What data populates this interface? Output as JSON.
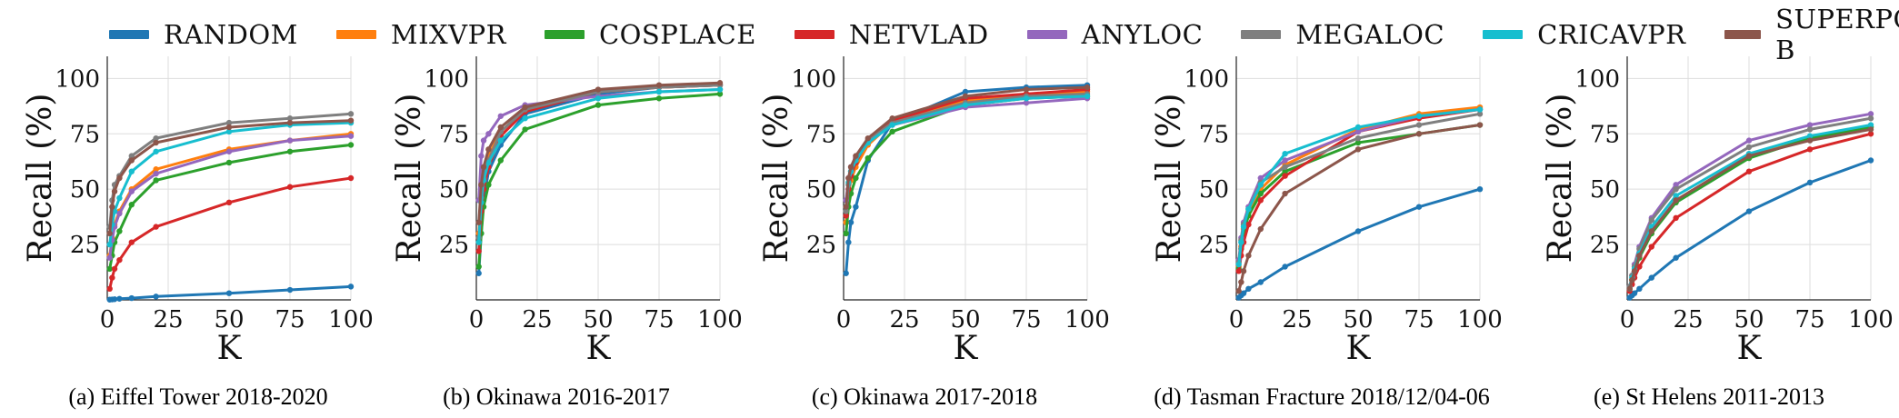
{
  "legend": {
    "items": [
      {
        "label": "RANDOM",
        "color": "#1f77b4"
      },
      {
        "label": "MIXVPR",
        "color": "#ff7f0e"
      },
      {
        "label": "COSPLACE",
        "color": "#2ca02c"
      },
      {
        "label": "NETVLAD",
        "color": "#d62728"
      },
      {
        "label": "ANYLOC",
        "color": "#9467bd"
      },
      {
        "label": "MEGALOC",
        "color": "#7f7f7f"
      },
      {
        "label": "CRICAVPR",
        "color": "#17becf"
      },
      {
        "label": "SUPERPOINT-B",
        "color": "#8c564b"
      }
    ]
  },
  "chart_data": [
    {
      "type": "line",
      "caption": "(a) Eiffel Tower 2018-2020",
      "xlabel": "K",
      "ylabel": "Recall (%)",
      "xlim": [
        0,
        100
      ],
      "ylim": [
        0,
        110
      ],
      "xticks": [
        0,
        25,
        50,
        75,
        100
      ],
      "yticks": [
        25,
        50,
        75,
        100
      ],
      "grid": true,
      "x": [
        1,
        2,
        3,
        5,
        10,
        20,
        50,
        75,
        100
      ],
      "series": [
        {
          "name": "RANDOM",
          "values": [
            0.1,
            0.2,
            0.3,
            0.5,
            0.8,
            1.5,
            3,
            4.5,
            6
          ]
        },
        {
          "name": "MIXVPR",
          "values": [
            20,
            28,
            34,
            40,
            50,
            59,
            68,
            72,
            75
          ]
        },
        {
          "name": "COSPLACE",
          "values": [
            14,
            20,
            26,
            31,
            43,
            54,
            62,
            67,
            70
          ]
        },
        {
          "name": "NETVLAD",
          "values": [
            5,
            10,
            14,
            18,
            26,
            33,
            44,
            51,
            55
          ]
        },
        {
          "name": "ANYLOC",
          "values": [
            19,
            27,
            33,
            39,
            49,
            57,
            67,
            72,
            74
          ]
        },
        {
          "name": "MEGALOC",
          "values": [
            33,
            45,
            52,
            56,
            65,
            73,
            80,
            82,
            84
          ]
        },
        {
          "name": "CRICAVPR",
          "values": [
            25,
            34,
            40,
            46,
            58,
            67,
            76,
            79,
            80
          ]
        },
        {
          "name": "SUPERPOINT-B",
          "values": [
            30,
            42,
            49,
            55,
            63,
            71,
            78,
            80,
            81
          ]
        }
      ]
    },
    {
      "type": "line",
      "caption": "(b) Okinawa 2016-2017",
      "xlabel": "K",
      "ylabel": "Recall (%)",
      "xlim": [
        0,
        100
      ],
      "ylim": [
        0,
        110
      ],
      "xticks": [
        0,
        25,
        50,
        75,
        100
      ],
      "yticks": [
        25,
        50,
        75,
        100
      ],
      "grid": true,
      "x": [
        1,
        2,
        3,
        5,
        10,
        20,
        50,
        75,
        100
      ],
      "series": [
        {
          "name": "RANDOM",
          "values": [
            12,
            30,
            45,
            58,
            70,
            84,
            93,
            96,
            97
          ]
        },
        {
          "name": "MIXVPR",
          "values": [
            30,
            48,
            56,
            65,
            76,
            86,
            94,
            96,
            97
          ]
        },
        {
          "name": "COSPLACE",
          "values": [
            15,
            30,
            42,
            52,
            63,
            77,
            88,
            91,
            93
          ]
        },
        {
          "name": "NETVLAD",
          "values": [
            22,
            40,
            50,
            60,
            74,
            85,
            94,
            96,
            97
          ]
        },
        {
          "name": "ANYLOC",
          "values": [
            45,
            65,
            72,
            75,
            83,
            88,
            92,
            94,
            95
          ]
        },
        {
          "name": "MEGALOC",
          "values": [
            28,
            46,
            55,
            63,
            76,
            86,
            94,
            96,
            97
          ]
        },
        {
          "name": "CRICAVPR",
          "values": [
            26,
            44,
            54,
            62,
            72,
            82,
            91,
            94,
            95
          ]
        },
        {
          "name": "SUPERPOINT-B",
          "values": [
            35,
            52,
            60,
            68,
            78,
            87,
            95,
            97,
            98
          ]
        }
      ]
    },
    {
      "type": "line",
      "caption": "(c) Okinawa 2017-2018",
      "xlabel": "K",
      "ylabel": "Recall (%)",
      "xlim": [
        0,
        100
      ],
      "ylim": [
        0,
        110
      ],
      "xticks": [
        0,
        25,
        50,
        75,
        100
      ],
      "yticks": [
        25,
        50,
        75,
        100
      ],
      "grid": true,
      "x": [
        1,
        2,
        3,
        5,
        10,
        20,
        50,
        75,
        100
      ],
      "series": [
        {
          "name": "RANDOM",
          "values": [
            12,
            26,
            35,
            42,
            63,
            80,
            94,
            96,
            97
          ]
        },
        {
          "name": "MIXVPR",
          "values": [
            35,
            48,
            54,
            60,
            70,
            80,
            90,
            93,
            94
          ]
        },
        {
          "name": "COSPLACE",
          "values": [
            30,
            42,
            48,
            55,
            64,
            76,
            88,
            91,
            92
          ]
        },
        {
          "name": "NETVLAD",
          "values": [
            38,
            50,
            56,
            62,
            72,
            81,
            91,
            93,
            95
          ]
        },
        {
          "name": "ANYLOC",
          "values": [
            45,
            55,
            60,
            64,
            72,
            79,
            87,
            89,
            91
          ]
        },
        {
          "name": "MEGALOC",
          "values": [
            40,
            52,
            58,
            63,
            72,
            80,
            89,
            92,
            93
          ]
        },
        {
          "name": "CRICAVPR",
          "values": [
            42,
            53,
            58,
            63,
            71,
            79,
            88,
            91,
            92
          ]
        },
        {
          "name": "SUPERPOINT-B",
          "values": [
            42,
            55,
            60,
            65,
            73,
            82,
            92,
            95,
            96
          ]
        }
      ]
    },
    {
      "type": "line",
      "caption": "(d) Tasman Fracture 2018/12/04-06",
      "xlabel": "K",
      "ylabel": "Recall (%)",
      "xlim": [
        0,
        100
      ],
      "ylim": [
        0,
        110
      ],
      "xticks": [
        0,
        25,
        50,
        75,
        100
      ],
      "yticks": [
        25,
        50,
        75,
        100
      ],
      "grid": true,
      "x": [
        1,
        2,
        3,
        5,
        10,
        20,
        50,
        75,
        100
      ],
      "series": [
        {
          "name": "RANDOM",
          "values": [
            1,
            2,
            3,
            5,
            8,
            15,
            31,
            42,
            50
          ]
        },
        {
          "name": "MIXVPR",
          "values": [
            15,
            24,
            32,
            40,
            50,
            61,
            77,
            84,
            87
          ]
        },
        {
          "name": "COSPLACE",
          "values": [
            14,
            23,
            30,
            38,
            48,
            58,
            71,
            75,
            79
          ]
        },
        {
          "name": "NETVLAD",
          "values": [
            13,
            20,
            26,
            34,
            45,
            56,
            76,
            82,
            86
          ]
        },
        {
          "name": "ANYLOC",
          "values": [
            18,
            28,
            35,
            42,
            55,
            63,
            76,
            83,
            86
          ]
        },
        {
          "name": "MEGALOC",
          "values": [
            17,
            27,
            34,
            41,
            53,
            60,
            73,
            79,
            84
          ]
        },
        {
          "name": "CRICAVPR",
          "values": [
            16,
            26,
            33,
            41,
            52,
            66,
            78,
            83,
            86
          ]
        },
        {
          "name": "SUPERPOINT-B",
          "values": [
            4,
            8,
            13,
            20,
            32,
            48,
            68,
            75,
            79
          ]
        }
      ]
    },
    {
      "type": "line",
      "caption": "(e) St Helens 2011-2013",
      "xlabel": "K",
      "ylabel": "Recall (%)",
      "xlim": [
        0,
        100
      ],
      "ylim": [
        0,
        110
      ],
      "xticks": [
        0,
        25,
        50,
        75,
        100
      ],
      "yticks": [
        25,
        50,
        75,
        100
      ],
      "grid": true,
      "x": [
        1,
        2,
        3,
        5,
        10,
        20,
        50,
        75,
        100
      ],
      "series": [
        {
          "name": "RANDOM",
          "values": [
            1,
            2,
            3,
            5,
            10,
            19,
            40,
            53,
            63
          ]
        },
        {
          "name": "MIXVPR",
          "values": [
            5,
            9,
            13,
            20,
            30,
            45,
            65,
            73,
            78
          ]
        },
        {
          "name": "COSPLACE",
          "values": [
            5,
            9,
            13,
            19,
            30,
            44,
            64,
            73,
            78
          ]
        },
        {
          "name": "NETVLAD",
          "values": [
            4,
            7,
            10,
            15,
            24,
            37,
            58,
            68,
            75
          ]
        },
        {
          "name": "ANYLOC",
          "values": [
            6,
            11,
            16,
            24,
            37,
            52,
            72,
            79,
            84
          ]
        },
        {
          "name": "MEGALOC",
          "values": [
            6,
            11,
            15,
            23,
            36,
            50,
            69,
            77,
            82
          ]
        },
        {
          "name": "CRICAVPR",
          "values": [
            5,
            10,
            14,
            21,
            33,
            47,
            66,
            74,
            79
          ]
        },
        {
          "name": "SUPERPOINT-B",
          "values": [
            5,
            9,
            13,
            20,
            31,
            45,
            65,
            72,
            77
          ]
        }
      ]
    }
  ]
}
